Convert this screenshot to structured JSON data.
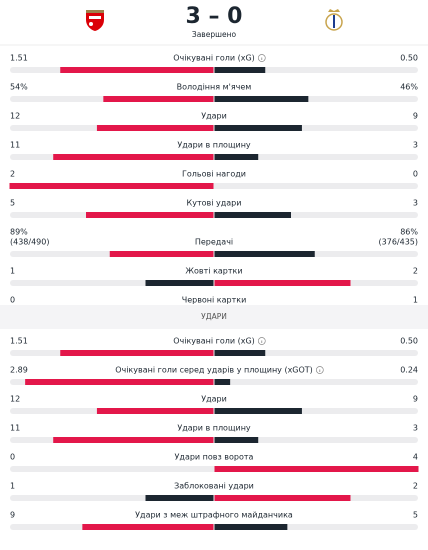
{
  "header": {
    "score": "3 – 0",
    "status": "Завершено"
  },
  "colors": {
    "leading": "#e3174a",
    "trailing": "#1c2630",
    "track": "#ececee"
  },
  "sections": [
    {
      "rows": [
        {
          "label": "Очікувані голи (xG)",
          "info": true,
          "home": 1.51,
          "away": 0.5,
          "away_label": "0.50"
        },
        {
          "label": "Володіння м'ячем",
          "home": 54,
          "away": 46,
          "home_label": "54%",
          "away_label": "46%"
        },
        {
          "label": "Удари",
          "home": 12,
          "away": 9
        },
        {
          "label": "Удари в площину",
          "home": 11,
          "away": 3
        },
        {
          "label": "Гольові нагоди",
          "home": 2,
          "away": 0
        },
        {
          "label": "Кутові удари",
          "home": 5,
          "away": 3
        },
        {
          "label": "Передачі",
          "home": 89,
          "away": 86,
          "home_label": "89%",
          "away_label": "86%",
          "home_sub": "(438/490)",
          "away_sub": "(376/435)"
        },
        {
          "label": "Жовті картки",
          "home": 1,
          "away": 2
        },
        {
          "label": "Червоні картки",
          "home": 0,
          "away": 1
        }
      ]
    },
    {
      "title": "УДАРИ",
      "rows": [
        {
          "label": "Очікувані голи (xG)",
          "info": true,
          "home": 1.51,
          "away": 0.5,
          "away_label": "0.50"
        },
        {
          "label": "Очікувані голи серед ударів у площину (xGOT)",
          "info": true,
          "home": 2.89,
          "away": 0.24
        },
        {
          "label": "Удари",
          "home": 12,
          "away": 9
        },
        {
          "label": "Удари в площину",
          "home": 11,
          "away": 3
        },
        {
          "label": "Удари повз ворота",
          "home": 0,
          "away": 4
        },
        {
          "label": "Заблоковані удари",
          "home": 1,
          "away": 2
        },
        {
          "label": "Удари з меж штрафного майданчика",
          "home": 9,
          "away": 5
        }
      ]
    }
  ]
}
